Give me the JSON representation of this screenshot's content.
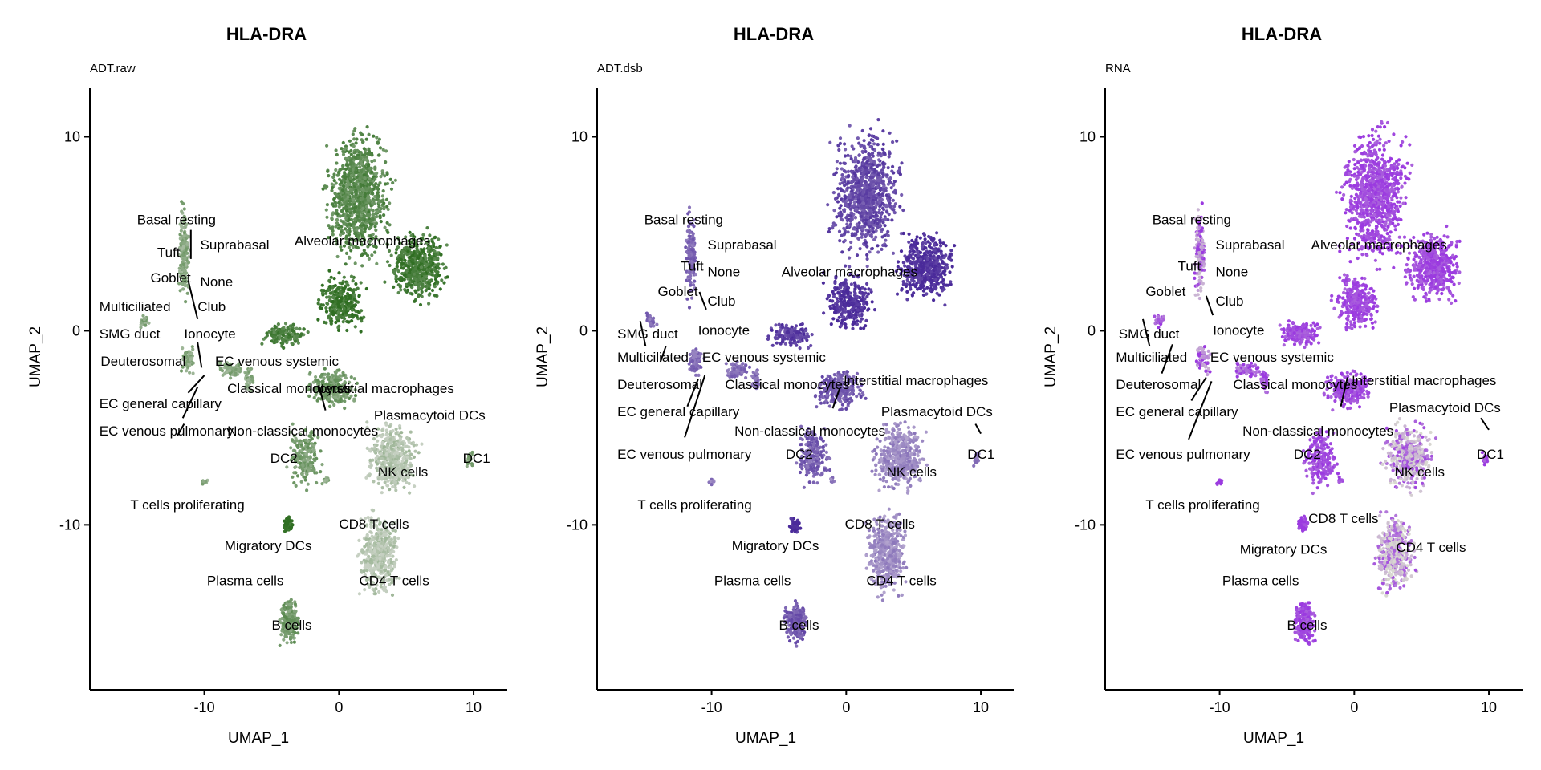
{
  "chart_data": [
    {
      "type": "scatter",
      "title": "HLA-DRA",
      "subtitle": "ADT.raw",
      "xlabel": "UMAP_1",
      "ylabel": "UMAP_2",
      "xticks": [
        "-10",
        "0",
        "10"
      ],
      "yticks": [
        "10",
        "0",
        "-10"
      ],
      "xlim": [
        -18.5,
        12.5
      ],
      "ylim": [
        -18.5,
        12.5
      ],
      "grid": false,
      "legend": "none",
      "colors": {
        "high": "#2f6e22",
        "low": "#c6d0c2"
      },
      "labels": [
        "Basal resting",
        "Suprabasal",
        "Tuft",
        "Goblet",
        "None",
        "Multiciliated",
        "Club",
        "SMG duct",
        "Ionocyte",
        "Deuterosomal",
        "EC venous systemic",
        "Classical monocytes",
        "Interstitial macrophages",
        "EC general capillary",
        "Plasmacytoid DCs",
        "EC venous pulmonary",
        "Non-classical monocytes",
        "DC2",
        "DC1",
        "NK cells",
        "T cells proliferating",
        "CD8 T cells",
        "Migratory DCs",
        "CD4 T cells",
        "Plasma cells",
        "B cells",
        "Alveolar macrophages"
      ]
    },
    {
      "type": "scatter",
      "title": "HLA-DRA",
      "subtitle": "ADT.dsb",
      "xlabel": "UMAP_1",
      "ylabel": "UMAP_2",
      "xticks": [
        "-10",
        "0",
        "10"
      ],
      "yticks": [
        "10",
        "0",
        "-10"
      ],
      "xlim": [
        -18.5,
        12.5
      ],
      "ylim": [
        -18.5,
        12.5
      ],
      "grid": false,
      "legend": "none",
      "colors": {
        "high": "#4a2a9a",
        "low": "#c2b6d6"
      },
      "labels": [
        "Basal resting",
        "Suprabasal",
        "Tuft",
        "None",
        "Alveolar macrophages",
        "Goblet",
        "Club",
        "SMG duct",
        "Ionocyte",
        "Multiciliated",
        "EC venous systemic",
        "Deuterosomal",
        "Classical monocytes",
        "Interstitial macrophages",
        "EC general capillary",
        "Plasmacytoid DCs",
        "Non-classical monocytes",
        "EC venous pulmonary",
        "DC2",
        "DC1",
        "NK cells",
        "T cells proliferating",
        "CD8 T cells",
        "Migratory DCs",
        "CD4 T cells",
        "Plasma cells",
        "B cells"
      ]
    },
    {
      "type": "scatter",
      "title": "HLA-DRA",
      "subtitle": "RNA",
      "xlabel": "UMAP_1",
      "ylabel": "UMAP_2",
      "xticks": [
        "-10",
        "0",
        "10"
      ],
      "yticks": [
        "10",
        "0",
        "-10"
      ],
      "xlim": [
        -18.5,
        12.5
      ],
      "ylim": [
        -18.5,
        12.5
      ],
      "grid": false,
      "legend": "none",
      "colors": {
        "high": "#9b3ae0",
        "low": "#d8d8d0"
      },
      "labels": [
        "Basal resting",
        "Suprabasal",
        "Alveolar macrophages",
        "Tuft",
        "None",
        "Goblet",
        "Club",
        "SMG duct",
        "Ionocyte",
        "Multiciliated",
        "EC venous systemic",
        "Deuterosomal",
        "Interstitial macrophages",
        "Classical monocytes",
        "EC general capillary",
        "Plasmacytoid DCs",
        "Non-classical monocytes",
        "EC venous pulmonary",
        "DC2",
        "DC1",
        "NK cells",
        "T cells proliferating",
        "CD8 T cells",
        "Migratory DCs",
        "CD4 T cells",
        "Plasma cells",
        "B cells"
      ]
    }
  ]
}
